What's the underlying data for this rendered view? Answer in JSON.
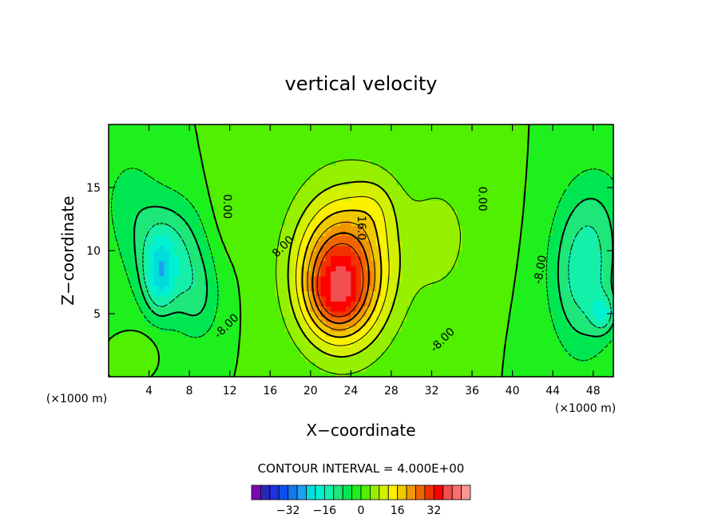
{
  "chart_data": {
    "type": "heatmap",
    "title": "vertical velocity",
    "xlabel": "X−coordinate",
    "ylabel": "Z−coordinate",
    "x_units_left": "(×1000 m)",
    "x_units_right": "(×1000 m)",
    "xlim": [
      0,
      50
    ],
    "ylim": [
      0,
      20
    ],
    "x_ticks": [
      4,
      8,
      12,
      16,
      20,
      24,
      28,
      32,
      36,
      40,
      44,
      48
    ],
    "x_tick_labels": [
      "4",
      "8",
      "12",
      "16",
      "20",
      "24",
      "28",
      "32",
      "36",
      "40",
      "44",
      "48"
    ],
    "y_ticks": [
      5,
      10,
      15
    ],
    "y_tick_labels": [
      "5",
      "10",
      "15"
    ],
    "contour_interval_text": "CONTOUR INTERVAL = 4.000E+00",
    "contour_labels": [
      {
        "text": "0.00",
        "x": 11.7,
        "y": 13.5,
        "rotate": 90
      },
      {
        "text": "0.00",
        "x": 37.0,
        "y": 14.1,
        "rotate": 90
      },
      {
        "text": "8.00",
        "x": 17.3,
        "y": 10.3,
        "rotate": -45
      },
      {
        "text": "16.0",
        "x": 25.0,
        "y": 11.8,
        "rotate": 90
      },
      {
        "text": "-8.00",
        "x": 42.8,
        "y": 8.5,
        "rotate": -80
      },
      {
        "text": "-8.00",
        "x": 11.7,
        "y": 4.0,
        "rotate": -45
      },
      {
        "text": "-8.00",
        "x": 33.1,
        "y": 2.9,
        "rotate": -45
      }
    ],
    "colorbar": {
      "colors": [
        "#7a0ab4",
        "#2828b4",
        "#1c32dc",
        "#0a50f0",
        "#1478f0",
        "#1ea0f0",
        "#00dcdc",
        "#00f0d2",
        "#14f0aa",
        "#1ee678",
        "#00e650",
        "#1ef01e",
        "#50f000",
        "#96f000",
        "#d2f000",
        "#faf000",
        "#f0c800",
        "#f09600",
        "#f06400",
        "#f03200",
        "#ff0000",
        "#f05050",
        "#fa6e6e",
        "#fa9696"
      ],
      "tick_values": [
        -32,
        -16,
        0,
        16,
        32
      ],
      "tick_labels": [
        "−32",
        "−16",
        "0",
        "16",
        "32"
      ],
      "min": -48,
      "max": 48
    },
    "field_blobs": [
      {
        "x": 23,
        "y": 8,
        "sx": 4.2,
        "sy": 5.2,
        "a": 26
      },
      {
        "x": 24,
        "y": 10,
        "sx": 6.0,
        "sy": 7.5,
        "a": 7
      },
      {
        "x": 22.5,
        "y": 6.3,
        "sx": 2.6,
        "sy": 2.7,
        "a": 9
      },
      {
        "x": 26.5,
        "y": 13.5,
        "sx": 2.2,
        "sy": 2.5,
        "a": 4
      },
      {
        "x": 33,
        "y": 11,
        "sx": 3.2,
        "sy": 5.0,
        "a": 5
      },
      {
        "x": 6,
        "y": 9.5,
        "sx": 3.5,
        "sy": 4.5,
        "a": -14
      },
      {
        "x": 5,
        "y": 8,
        "sx": 1.4,
        "sy": 2.8,
        "a": -12
      },
      {
        "x": 9,
        "y": 6,
        "sx": 2.2,
        "sy": 3.5,
        "a": -6
      },
      {
        "x": 2,
        "y": 14,
        "sx": 3.0,
        "sy": 4.5,
        "a": -5
      },
      {
        "x": 47,
        "y": 8,
        "sx": 3.2,
        "sy": 6.0,
        "a": -14
      },
      {
        "x": 49,
        "y": 5,
        "sx": 1.2,
        "sy": 1.5,
        "a": -10
      },
      {
        "x": 49,
        "y": 13,
        "sx": 3.5,
        "sy": 5.0,
        "a": -4
      },
      {
        "x": 11.5,
        "y": 14,
        "sx": 1.8,
        "sy": 5.0,
        "a": 2.5
      },
      {
        "x": 38,
        "y": 14,
        "sx": 2.0,
        "sy": 5.0,
        "a": 2.5
      },
      {
        "x": 3,
        "y": 2.2,
        "sx": 1.6,
        "sy": 1.3,
        "a": 4
      }
    ],
    "contour_levels": [
      -12,
      -8,
      -4,
      0,
      4,
      8,
      12,
      16,
      20,
      24,
      28
    ]
  }
}
